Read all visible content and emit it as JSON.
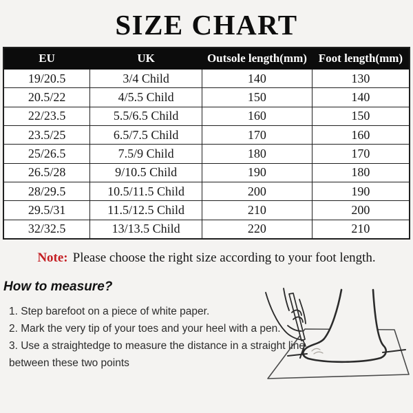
{
  "title": "SIZE CHART",
  "table": {
    "headers": [
      "EU",
      "UK",
      "Outsole length(mm)",
      "Foot length(mm)"
    ],
    "rows": [
      [
        "19/20.5",
        "3/4 Child",
        "140",
        "130"
      ],
      [
        "20.5/22",
        "4/5.5 Child",
        "150",
        "140"
      ],
      [
        "22/23.5",
        "5.5/6.5 Child",
        "160",
        "150"
      ],
      [
        "23.5/25",
        "6.5/7.5 Child",
        "170",
        "160"
      ],
      [
        "25/26.5",
        "7.5/9 Child",
        "180",
        "170"
      ],
      [
        "26.5/28",
        "9/10.5 Child",
        "190",
        "180"
      ],
      [
        "28/29.5",
        "10.5/11.5 Child",
        "200",
        "190"
      ],
      [
        "29.5/31",
        "11.5/12.5 Child",
        "210",
        "200"
      ],
      [
        "32/32.5",
        "13/13.5 Child",
        "220",
        "210"
      ]
    ]
  },
  "note": {
    "label": "Note:",
    "text": "Please choose the right size according to your foot length."
  },
  "measure": {
    "heading": "How to measure?",
    "steps": [
      "1. Step barefoot on a piece of white paper.",
      "2. Mark the very tip of your toes and your heel with a pen.",
      "3. Use a straightedge to measure the distance in a straight line",
      "between these two points"
    ]
  },
  "colors": {
    "background": "#f4f3f1",
    "header_bg": "#0c0c0c",
    "table_border": "#1f1f1f",
    "note_red": "#c41e23",
    "line_art": "#2b2b2b"
  }
}
